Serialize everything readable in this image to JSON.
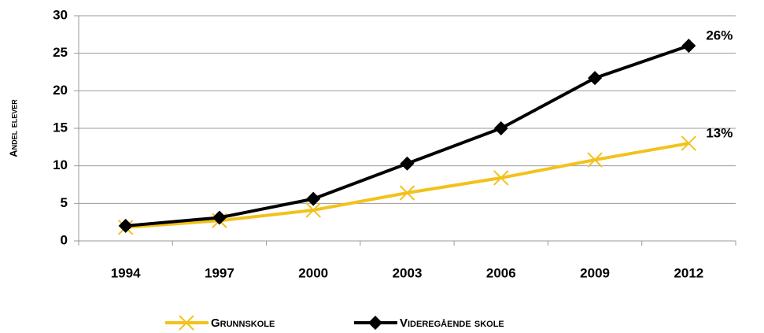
{
  "chart_data": {
    "type": "line",
    "y_label": "Andel elever",
    "categories": [
      "1994",
      "1997",
      "2000",
      "2003",
      "2006",
      "2009",
      "2012"
    ],
    "series": [
      {
        "name": "Grunnskole",
        "color": "#f2c21b",
        "marker": "x",
        "values": [
          1.8,
          2.7,
          4.1,
          6.4,
          8.4,
          10.8,
          13
        ],
        "value_labels": [
          null,
          null,
          null,
          null,
          null,
          null,
          "13%"
        ]
      },
      {
        "name": "Videregående skole",
        "color": "#000000",
        "marker": "diamond",
        "values": [
          2.0,
          3.1,
          5.6,
          10.3,
          15.0,
          21.7,
          26
        ],
        "value_labels": [
          null,
          null,
          null,
          null,
          null,
          null,
          "26%"
        ]
      }
    ],
    "ylim": [
      0,
      30
    ],
    "yticks": [
      0,
      5,
      10,
      15,
      20,
      25,
      30
    ],
    "grid": true,
    "legend": "bottom"
  }
}
